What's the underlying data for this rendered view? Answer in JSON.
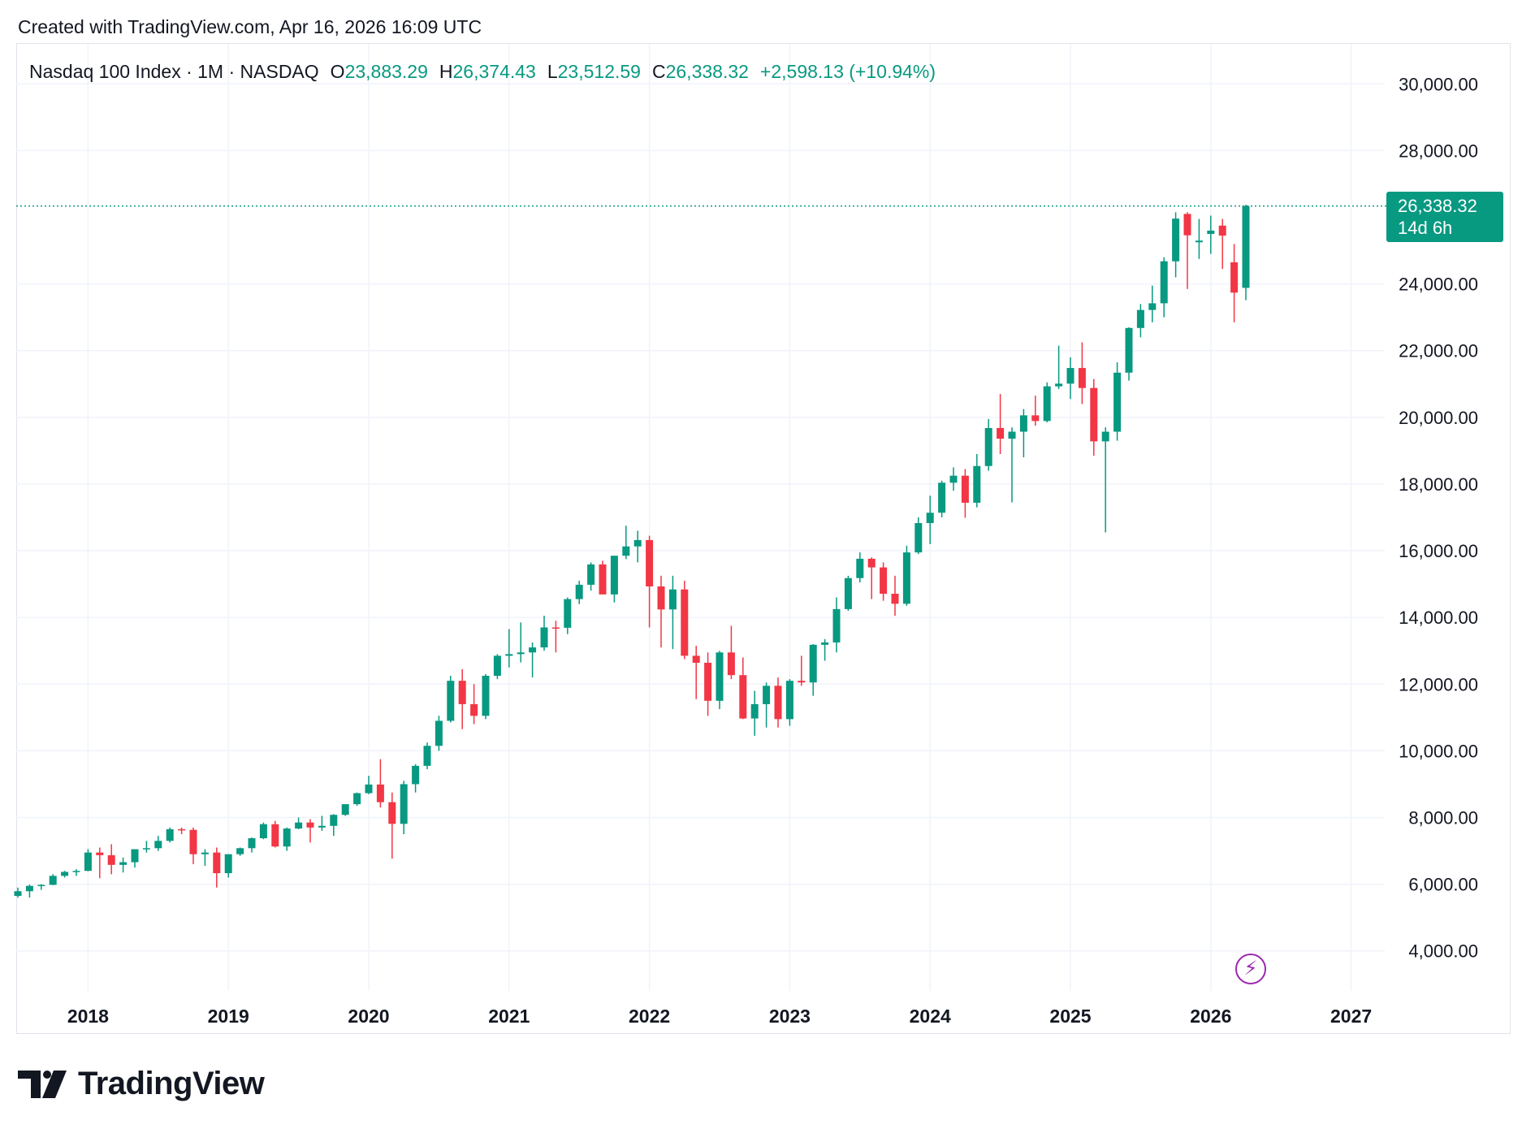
{
  "header": {
    "created_text": "Created with TradingView.com, Apr 16, 2026 16:09 UTC"
  },
  "legend": {
    "symbol": "Nasdaq 100 Index · 1M · NASDAQ",
    "open_label": "O",
    "open_value": "23,883.29",
    "high_label": "H",
    "high_value": "26,374.43",
    "low_label": "L",
    "low_value": "23,512.59",
    "close_label": "C",
    "close_value": "26,338.32",
    "change": "+2,598.13 (+10.94%)"
  },
  "price_tag": {
    "price": "26,338.32",
    "countdown": "14d 6h"
  },
  "brand": {
    "name": "TradingView"
  },
  "colors": {
    "up": "#089981",
    "down": "#f23645",
    "grid": "#f0f3fa",
    "text": "#131722",
    "accent_purple": "#9c27b0"
  },
  "chart_data": {
    "type": "candlestick",
    "title": "Nasdaq 100 Index · 1M · NASDAQ",
    "interval": "1M",
    "ylim": [
      2800,
      31200
    ],
    "y_ticks": [
      {
        "value": 30000,
        "label": "30,000.00"
      },
      {
        "value": 28000,
        "label": "28,000.00"
      },
      {
        "value": 24000,
        "label": "24,000.00"
      },
      {
        "value": 22000,
        "label": "22,000.00"
      },
      {
        "value": 20000,
        "label": "20,000.00"
      },
      {
        "value": 18000,
        "label": "18,000.00"
      },
      {
        "value": 16000,
        "label": "16,000.00"
      },
      {
        "value": 14000,
        "label": "14,000.00"
      },
      {
        "value": 12000,
        "label": "12,000.00"
      },
      {
        "value": 10000,
        "label": "10,000.00"
      },
      {
        "value": 8000,
        "label": "8,000.00"
      },
      {
        "value": 6000,
        "label": "6,000.00"
      },
      {
        "value": 4000,
        "label": "4,000.00"
      }
    ],
    "x_ticks": [
      {
        "index": 6,
        "label": "2018"
      },
      {
        "index": 18,
        "label": "2019"
      },
      {
        "index": 30,
        "label": "2020"
      },
      {
        "index": 42,
        "label": "2021"
      },
      {
        "index": 54,
        "label": "2022"
      },
      {
        "index": 66,
        "label": "2023"
      },
      {
        "index": 78,
        "label": "2024"
      },
      {
        "index": 90,
        "label": "2025"
      },
      {
        "index": 102,
        "label": "2026"
      },
      {
        "index": 114,
        "label": "2027"
      }
    ],
    "last_price": 26338.32,
    "candles": [
      {
        "t": "2017-07",
        "o": 5650,
        "h": 5900,
        "l": 5600,
        "c": 5790
      },
      {
        "t": "2017-08",
        "o": 5790,
        "h": 5990,
        "l": 5600,
        "c": 5950
      },
      {
        "t": "2017-09",
        "o": 5950,
        "h": 6000,
        "l": 5830,
        "c": 5980
      },
      {
        "t": "2017-10",
        "o": 5980,
        "h": 6300,
        "l": 5970,
        "c": 6250
      },
      {
        "t": "2017-11",
        "o": 6250,
        "h": 6400,
        "l": 6200,
        "c": 6370
      },
      {
        "t": "2017-12",
        "o": 6370,
        "h": 6450,
        "l": 6250,
        "c": 6400
      },
      {
        "t": "2018-01",
        "o": 6400,
        "h": 7050,
        "l": 6390,
        "c": 6950
      },
      {
        "t": "2018-02",
        "o": 6950,
        "h": 7100,
        "l": 6180,
        "c": 6870
      },
      {
        "t": "2018-03",
        "o": 6870,
        "h": 7200,
        "l": 6300,
        "c": 6580
      },
      {
        "t": "2018-04",
        "o": 6580,
        "h": 6800,
        "l": 6350,
        "c": 6660
      },
      {
        "t": "2018-05",
        "o": 6660,
        "h": 7050,
        "l": 6500,
        "c": 7050
      },
      {
        "t": "2018-06",
        "o": 7050,
        "h": 7300,
        "l": 6950,
        "c": 7080
      },
      {
        "t": "2018-07",
        "o": 7080,
        "h": 7450,
        "l": 7000,
        "c": 7300
      },
      {
        "t": "2018-08",
        "o": 7300,
        "h": 7700,
        "l": 7250,
        "c": 7650
      },
      {
        "t": "2018-09",
        "o": 7650,
        "h": 7700,
        "l": 7500,
        "c": 7630
      },
      {
        "t": "2018-10",
        "o": 7630,
        "h": 7700,
        "l": 6600,
        "c": 6900
      },
      {
        "t": "2018-11",
        "o": 6900,
        "h": 7050,
        "l": 6550,
        "c": 6950
      },
      {
        "t": "2018-12",
        "o": 6950,
        "h": 7100,
        "l": 5900,
        "c": 6330
      },
      {
        "t": "2019-01",
        "o": 6330,
        "h": 6900,
        "l": 6200,
        "c": 6900
      },
      {
        "t": "2019-02",
        "o": 6900,
        "h": 7100,
        "l": 6850,
        "c": 7080
      },
      {
        "t": "2019-03",
        "o": 7080,
        "h": 7400,
        "l": 6950,
        "c": 7380
      },
      {
        "t": "2019-04",
        "o": 7380,
        "h": 7850,
        "l": 7350,
        "c": 7800
      },
      {
        "t": "2019-05",
        "o": 7800,
        "h": 7900,
        "l": 7100,
        "c": 7130
      },
      {
        "t": "2019-06",
        "o": 7130,
        "h": 7700,
        "l": 7000,
        "c": 7670
      },
      {
        "t": "2019-07",
        "o": 7670,
        "h": 8000,
        "l": 7650,
        "c": 7850
      },
      {
        "t": "2019-08",
        "o": 7850,
        "h": 7950,
        "l": 7250,
        "c": 7700
      },
      {
        "t": "2019-09",
        "o": 7700,
        "h": 8050,
        "l": 7600,
        "c": 7750
      },
      {
        "t": "2019-10",
        "o": 7750,
        "h": 8100,
        "l": 7450,
        "c": 8080
      },
      {
        "t": "2019-11",
        "o": 8080,
        "h": 8400,
        "l": 8050,
        "c": 8400
      },
      {
        "t": "2019-12",
        "o": 8400,
        "h": 8750,
        "l": 8350,
        "c": 8730
      },
      {
        "t": "2020-01",
        "o": 8730,
        "h": 9250,
        "l": 8700,
        "c": 8990
      },
      {
        "t": "2020-02",
        "o": 8990,
        "h": 9750,
        "l": 8300,
        "c": 8460
      },
      {
        "t": "2020-03",
        "o": 8460,
        "h": 8750,
        "l": 6770,
        "c": 7810
      },
      {
        "t": "2020-04",
        "o": 7810,
        "h": 9100,
        "l": 7500,
        "c": 9000
      },
      {
        "t": "2020-05",
        "o": 9000,
        "h": 9600,
        "l": 8750,
        "c": 9550
      },
      {
        "t": "2020-06",
        "o": 9550,
        "h": 10250,
        "l": 9450,
        "c": 10150
      },
      {
        "t": "2020-07",
        "o": 10150,
        "h": 11050,
        "l": 10000,
        "c": 10900
      },
      {
        "t": "2020-08",
        "o": 10900,
        "h": 12250,
        "l": 10850,
        "c": 12100
      },
      {
        "t": "2020-09",
        "o": 12100,
        "h": 12450,
        "l": 10650,
        "c": 11400
      },
      {
        "t": "2020-10",
        "o": 11400,
        "h": 12000,
        "l": 10800,
        "c": 11050
      },
      {
        "t": "2020-11",
        "o": 11050,
        "h": 12300,
        "l": 10950,
        "c": 12250
      },
      {
        "t": "2020-12",
        "o": 12250,
        "h": 12900,
        "l": 12150,
        "c": 12850
      },
      {
        "t": "2021-01",
        "o": 12850,
        "h": 13650,
        "l": 12500,
        "c": 12900
      },
      {
        "t": "2021-02",
        "o": 12900,
        "h": 13850,
        "l": 12650,
        "c": 12950
      },
      {
        "t": "2021-03",
        "o": 12950,
        "h": 13250,
        "l": 12200,
        "c": 13100
      },
      {
        "t": "2021-04",
        "o": 13100,
        "h": 14050,
        "l": 13000,
        "c": 13700
      },
      {
        "t": "2021-05",
        "o": 13700,
        "h": 13900,
        "l": 12950,
        "c": 13690
      },
      {
        "t": "2021-06",
        "o": 13690,
        "h": 14600,
        "l": 13500,
        "c": 14550
      },
      {
        "t": "2021-07",
        "o": 14550,
        "h": 15100,
        "l": 14400,
        "c": 14980
      },
      {
        "t": "2021-08",
        "o": 14980,
        "h": 15650,
        "l": 14800,
        "c": 15590
      },
      {
        "t": "2021-09",
        "o": 15590,
        "h": 15700,
        "l": 14700,
        "c": 14690
      },
      {
        "t": "2021-10",
        "o": 14690,
        "h": 15850,
        "l": 14450,
        "c": 15850
      },
      {
        "t": "2021-11",
        "o": 15850,
        "h": 16750,
        "l": 15750,
        "c": 16130
      },
      {
        "t": "2021-12",
        "o": 16130,
        "h": 16600,
        "l": 15650,
        "c": 16320
      },
      {
        "t": "2022-01",
        "o": 16320,
        "h": 16450,
        "l": 13700,
        "c": 14930
      },
      {
        "t": "2022-02",
        "o": 14930,
        "h": 15250,
        "l": 13100,
        "c": 14240
      },
      {
        "t": "2022-03",
        "o": 14240,
        "h": 15250,
        "l": 13050,
        "c": 14840
      },
      {
        "t": "2022-04",
        "o": 14840,
        "h": 15100,
        "l": 12750,
        "c": 12850
      },
      {
        "t": "2022-05",
        "o": 12850,
        "h": 13150,
        "l": 11550,
        "c": 12640
      },
      {
        "t": "2022-06",
        "o": 12640,
        "h": 12950,
        "l": 11050,
        "c": 11500
      },
      {
        "t": "2022-07",
        "o": 11500,
        "h": 13000,
        "l": 11250,
        "c": 12950
      },
      {
        "t": "2022-08",
        "o": 12950,
        "h": 13750,
        "l": 12150,
        "c": 12270
      },
      {
        "t": "2022-09",
        "o": 12270,
        "h": 12800,
        "l": 10950,
        "c": 10970
      },
      {
        "t": "2022-10",
        "o": 10970,
        "h": 11800,
        "l": 10450,
        "c": 11400
      },
      {
        "t": "2022-11",
        "o": 11400,
        "h": 12050,
        "l": 10700,
        "c": 11950
      },
      {
        "t": "2022-12",
        "o": 11950,
        "h": 12200,
        "l": 10700,
        "c": 10950
      },
      {
        "t": "2023-01",
        "o": 10950,
        "h": 12150,
        "l": 10750,
        "c": 12100
      },
      {
        "t": "2023-02",
        "o": 12100,
        "h": 12850,
        "l": 11950,
        "c": 12050
      },
      {
        "t": "2023-03",
        "o": 12050,
        "h": 13200,
        "l": 11650,
        "c": 13180
      },
      {
        "t": "2023-04",
        "o": 13180,
        "h": 13350,
        "l": 12700,
        "c": 13250
      },
      {
        "t": "2023-05",
        "o": 13250,
        "h": 14600,
        "l": 12950,
        "c": 14250
      },
      {
        "t": "2023-06",
        "o": 14250,
        "h": 15250,
        "l": 14200,
        "c": 15180
      },
      {
        "t": "2023-07",
        "o": 15180,
        "h": 15950,
        "l": 15050,
        "c": 15760
      },
      {
        "t": "2023-08",
        "o": 15760,
        "h": 15800,
        "l": 14550,
        "c": 15500
      },
      {
        "t": "2023-09",
        "o": 15500,
        "h": 15650,
        "l": 14500,
        "c": 14710
      },
      {
        "t": "2023-10",
        "o": 14710,
        "h": 15250,
        "l": 14050,
        "c": 14410
      },
      {
        "t": "2023-11",
        "o": 14410,
        "h": 16150,
        "l": 14350,
        "c": 15950
      },
      {
        "t": "2023-12",
        "o": 15950,
        "h": 17000,
        "l": 15900,
        "c": 16830
      },
      {
        "t": "2024-01",
        "o": 16830,
        "h": 17650,
        "l": 16200,
        "c": 17140
      },
      {
        "t": "2024-02",
        "o": 17140,
        "h": 18100,
        "l": 17000,
        "c": 18040
      },
      {
        "t": "2024-03",
        "o": 18040,
        "h": 18500,
        "l": 17800,
        "c": 18250
      },
      {
        "t": "2024-04",
        "o": 18250,
        "h": 18450,
        "l": 16990,
        "c": 17440
      },
      {
        "t": "2024-05",
        "o": 17440,
        "h": 18900,
        "l": 17300,
        "c": 18540
      },
      {
        "t": "2024-06",
        "o": 18540,
        "h": 19950,
        "l": 18400,
        "c": 19680
      },
      {
        "t": "2024-07",
        "o": 19680,
        "h": 20700,
        "l": 18900,
        "c": 19360
      },
      {
        "t": "2024-08",
        "o": 19360,
        "h": 19700,
        "l": 17450,
        "c": 19570
      },
      {
        "t": "2024-09",
        "o": 19570,
        "h": 20250,
        "l": 18800,
        "c": 20060
      },
      {
        "t": "2024-10",
        "o": 20060,
        "h": 20650,
        "l": 19750,
        "c": 19890
      },
      {
        "t": "2024-11",
        "o": 19890,
        "h": 21050,
        "l": 19850,
        "c": 20930
      },
      {
        "t": "2024-12",
        "o": 20930,
        "h": 22150,
        "l": 20850,
        "c": 21010
      },
      {
        "t": "2025-01",
        "o": 21010,
        "h": 21800,
        "l": 20550,
        "c": 21480
      },
      {
        "t": "2025-02",
        "o": 21480,
        "h": 22250,
        "l": 20400,
        "c": 20880
      },
      {
        "t": "2025-03",
        "o": 20880,
        "h": 21150,
        "l": 18850,
        "c": 19280
      },
      {
        "t": "2025-04",
        "o": 19280,
        "h": 19700,
        "l": 16550,
        "c": 19570
      },
      {
        "t": "2025-05",
        "o": 19570,
        "h": 21650,
        "l": 19300,
        "c": 21340
      },
      {
        "t": "2025-06",
        "o": 21340,
        "h": 22700,
        "l": 21100,
        "c": 22680
      },
      {
        "t": "2025-07",
        "o": 22680,
        "h": 23400,
        "l": 22400,
        "c": 23220
      },
      {
        "t": "2025-08",
        "o": 23220,
        "h": 23950,
        "l": 22850,
        "c": 23420
      },
      {
        "t": "2025-09",
        "o": 23420,
        "h": 24800,
        "l": 23000,
        "c": 24680
      },
      {
        "t": "2025-10",
        "o": 24680,
        "h": 26150,
        "l": 24200,
        "c": 25960
      },
      {
        "t": "2025-11",
        "o": 26100,
        "h": 26150,
        "l": 23850,
        "c": 25460
      },
      {
        "t": "2025-12",
        "o": 25250,
        "h": 25950,
        "l": 24750,
        "c": 25300
      },
      {
        "t": "2026-01",
        "o": 25500,
        "h": 26050,
        "l": 24900,
        "c": 25600
      },
      {
        "t": "2026-02",
        "o": 25750,
        "h": 25950,
        "l": 24450,
        "c": 25450
      },
      {
        "t": "2026-03",
        "o": 24650,
        "h": 25200,
        "l": 22850,
        "c": 23740
      },
      {
        "t": "2026-04",
        "o": 23883.29,
        "h": 26374.43,
        "l": 23512.59,
        "c": 26338.32
      }
    ]
  }
}
